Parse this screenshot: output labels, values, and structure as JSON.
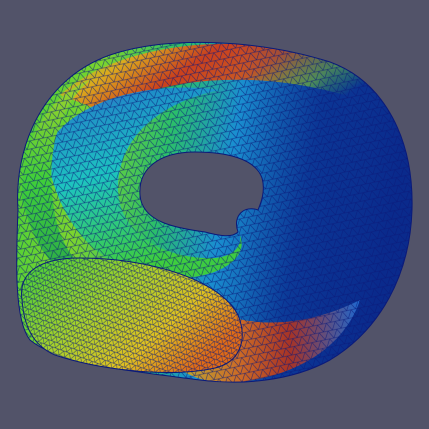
{
  "scene": {
    "background_color": "#525369",
    "wireframe_color": "#0a1a7a",
    "colormap": [
      "#0a2a8c",
      "#1f6fd8",
      "#19c3c7",
      "#3fcf3a",
      "#b8d22a",
      "#e1c21f",
      "#e06b16",
      "#c21f16"
    ]
  }
}
